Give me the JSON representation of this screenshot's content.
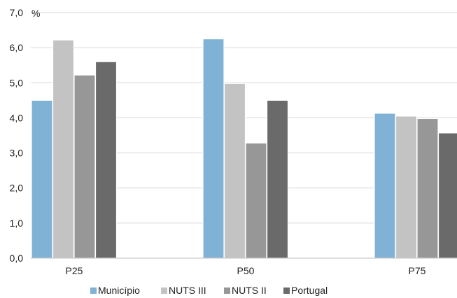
{
  "chart_data": {
    "type": "bar",
    "unit": "%",
    "categories": [
      "P25",
      "P50",
      "P75"
    ],
    "series": [
      {
        "name": "Município",
        "color": "#7fb2d5",
        "values": [
          4.5,
          6.25,
          4.13
        ]
      },
      {
        "name": "NUTS III",
        "color": "#c3c3c3",
        "values": [
          6.22,
          4.98,
          4.05
        ]
      },
      {
        "name": "NUTS II",
        "color": "#979797",
        "values": [
          5.22,
          3.28,
          3.98
        ]
      },
      {
        "name": "Portugal",
        "color": "#6a6a6a",
        "values": [
          5.6,
          4.5,
          3.57
        ]
      }
    ],
    "ylim": [
      0,
      7
    ],
    "yticks": [
      "0,0",
      "1,0",
      "2,0",
      "3,0",
      "4,0",
      "5,0",
      "6,0",
      "7,0"
    ],
    "grid": true,
    "legend_position": "bottom"
  }
}
